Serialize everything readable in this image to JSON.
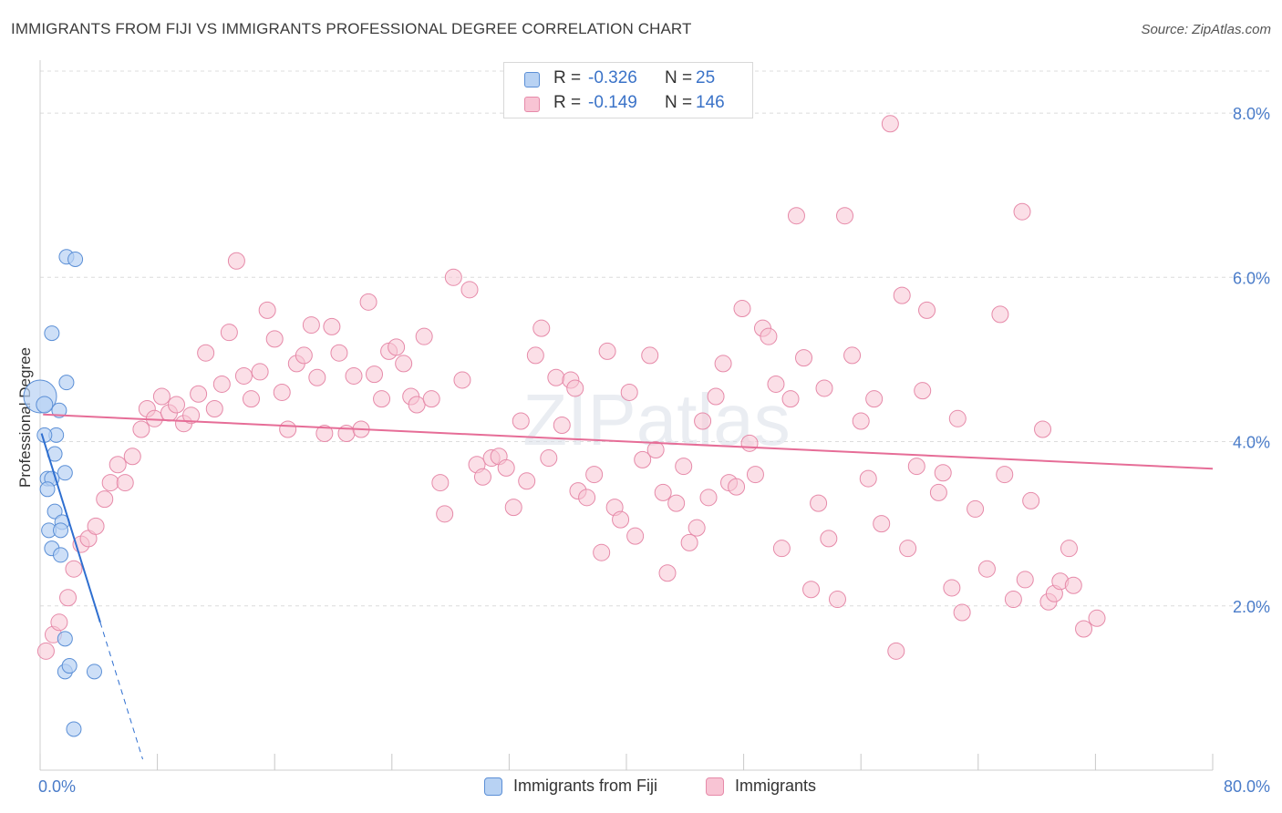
{
  "header": {
    "title": "IMMIGRANTS FROM FIJI VS IMMIGRANTS PROFESSIONAL DEGREE CORRELATION CHART",
    "source": "Source: ZipAtlas.com"
  },
  "watermark": "ZIPatlas",
  "legend_top": {
    "rows": [
      {
        "r_label": "R =",
        "r_value": "-0.326",
        "n_label": "N =",
        "n_value": "25"
      },
      {
        "r_label": "R =",
        "r_value": "-0.149",
        "n_label": "N =",
        "n_value": "146"
      }
    ]
  },
  "legend_bottom": {
    "items": [
      "Immigrants from Fiji",
      "Immigrants"
    ]
  },
  "colors": {
    "fiji_fill": "#b8d2f3",
    "fiji_stroke": "#5b8fd6",
    "fiji_line": "#2f6fd0",
    "imm_fill": "#f8c4d4",
    "imm_stroke": "#e68aa9",
    "imm_line": "#e66d97",
    "axis_text": "#4a7cc9",
    "grid": "#dcdcdc"
  },
  "chart_data": {
    "type": "scatter",
    "title": "IMMIGRANTS FROM FIJI VS IMMIGRANTS PROFESSIONAL DEGREE CORRELATION CHART",
    "xlabel": "",
    "ylabel": "Professional Degree",
    "xlim": [
      0,
      80
    ],
    "ylim": [
      0,
      8.6
    ],
    "x_tick_labels": [
      "0.0%",
      "80.0%"
    ],
    "y_tick_labels": [
      "2.0%",
      "4.0%",
      "6.0%",
      "8.0%"
    ],
    "y_ticks": [
      2,
      4,
      6,
      8
    ],
    "grid": "horizontal dashed",
    "legend": "top-center",
    "series": [
      {
        "name": "Immigrants from Fiji",
        "r": -0.326,
        "n": 25,
        "trend": {
          "x0": 0.1,
          "y0": 4.1,
          "x1": 4.1,
          "y1": 1.8,
          "dashed_to_x": 7.0
        },
        "points": [
          [
            0.0,
            4.55,
            18
          ],
          [
            0.3,
            4.45,
            9
          ],
          [
            0.8,
            5.32,
            8
          ],
          [
            1.8,
            6.25,
            8
          ],
          [
            2.4,
            6.22,
            8
          ],
          [
            1.8,
            4.72,
            8
          ],
          [
            1.3,
            4.38,
            8
          ],
          [
            1.1,
            4.08,
            8
          ],
          [
            0.3,
            4.08,
            8
          ],
          [
            1.0,
            3.85,
            8
          ],
          [
            1.7,
            3.62,
            8
          ],
          [
            0.5,
            3.55,
            8
          ],
          [
            0.8,
            3.55,
            8
          ],
          [
            0.5,
            3.42,
            8
          ],
          [
            1.0,
            3.15,
            8
          ],
          [
            1.5,
            3.02,
            8
          ],
          [
            0.6,
            2.92,
            8
          ],
          [
            1.4,
            2.92,
            8
          ],
          [
            0.8,
            2.7,
            8
          ],
          [
            1.4,
            2.62,
            8
          ],
          [
            1.7,
            1.6,
            8
          ],
          [
            1.7,
            1.2,
            8
          ],
          [
            2.0,
            1.27,
            8
          ],
          [
            3.7,
            1.2,
            8
          ],
          [
            2.3,
            0.5,
            8
          ]
        ]
      },
      {
        "name": "Immigrants",
        "r": -0.149,
        "n": 146,
        "trend": {
          "x0": 0.2,
          "y0": 4.33,
          "x1": 80.0,
          "y1": 3.67
        },
        "points": [
          [
            0.4,
            1.45,
            9
          ],
          [
            0.9,
            1.65,
            9
          ],
          [
            1.3,
            1.8,
            9
          ],
          [
            1.9,
            2.1,
            9
          ],
          [
            2.3,
            2.45,
            9
          ],
          [
            2.8,
            2.75,
            9
          ],
          [
            3.3,
            2.82,
            9
          ],
          [
            3.8,
            2.97,
            9
          ],
          [
            4.4,
            3.3,
            9
          ],
          [
            4.8,
            3.5,
            9
          ],
          [
            5.3,
            3.72,
            9
          ],
          [
            5.8,
            3.5,
            9
          ],
          [
            6.3,
            3.82,
            9
          ],
          [
            6.9,
            4.15,
            9
          ],
          [
            7.3,
            4.4,
            9
          ],
          [
            7.8,
            4.28,
            9
          ],
          [
            8.3,
            4.55,
            9
          ],
          [
            8.8,
            4.35,
            9
          ],
          [
            9.3,
            4.45,
            9
          ],
          [
            9.8,
            4.22,
            9
          ],
          [
            10.3,
            4.32,
            9
          ],
          [
            10.8,
            4.58,
            9
          ],
          [
            11.3,
            5.08,
            9
          ],
          [
            11.9,
            4.4,
            9
          ],
          [
            12.4,
            4.7,
            9
          ],
          [
            12.9,
            5.33,
            9
          ],
          [
            13.4,
            6.2,
            9
          ],
          [
            13.9,
            4.8,
            9
          ],
          [
            14.4,
            4.52,
            9
          ],
          [
            15.0,
            4.85,
            9
          ],
          [
            15.5,
            5.6,
            9
          ],
          [
            16.0,
            5.25,
            9
          ],
          [
            16.5,
            4.6,
            9
          ],
          [
            16.9,
            4.15,
            9
          ],
          [
            17.5,
            4.95,
            9
          ],
          [
            18.0,
            5.05,
            9
          ],
          [
            18.5,
            5.42,
            9
          ],
          [
            18.9,
            4.78,
            9
          ],
          [
            19.4,
            4.1,
            9
          ],
          [
            19.9,
            5.4,
            9
          ],
          [
            20.4,
            5.08,
            9
          ],
          [
            20.9,
            4.1,
            9
          ],
          [
            21.4,
            4.8,
            9
          ],
          [
            21.9,
            4.15,
            9
          ],
          [
            22.4,
            5.7,
            9
          ],
          [
            22.8,
            4.82,
            9
          ],
          [
            23.3,
            4.52,
            9
          ],
          [
            23.8,
            5.1,
            9
          ],
          [
            24.3,
            5.15,
            9
          ],
          [
            24.8,
            4.95,
            9
          ],
          [
            25.3,
            4.55,
            9
          ],
          [
            25.7,
            4.45,
            9
          ],
          [
            26.2,
            5.28,
            9
          ],
          [
            26.7,
            4.52,
            9
          ],
          [
            27.3,
            3.5,
            9
          ],
          [
            27.6,
            3.12,
            9
          ],
          [
            28.2,
            6.0,
            9
          ],
          [
            28.8,
            4.75,
            9
          ],
          [
            29.3,
            5.85,
            9
          ],
          [
            29.8,
            3.72,
            9
          ],
          [
            30.2,
            3.57,
            9
          ],
          [
            30.8,
            3.8,
            9
          ],
          [
            31.3,
            3.82,
            9
          ],
          [
            31.8,
            3.68,
            9
          ],
          [
            32.3,
            3.2,
            9
          ],
          [
            32.8,
            4.25,
            9
          ],
          [
            33.2,
            3.52,
            9
          ],
          [
            33.8,
            5.05,
            9
          ],
          [
            34.2,
            5.38,
            9
          ],
          [
            34.7,
            3.8,
            9
          ],
          [
            35.2,
            4.78,
            9
          ],
          [
            35.6,
            4.2,
            9
          ],
          [
            36.2,
            4.75,
            9
          ],
          [
            36.5,
            4.65,
            9
          ],
          [
            36.7,
            3.4,
            9
          ],
          [
            37.3,
            3.32,
            9
          ],
          [
            37.8,
            3.6,
            9
          ],
          [
            38.3,
            2.65,
            9
          ],
          [
            38.7,
            5.1,
            9
          ],
          [
            39.2,
            3.2,
            9
          ],
          [
            39.6,
            3.05,
            9
          ],
          [
            40.2,
            4.6,
            9
          ],
          [
            40.6,
            2.85,
            9
          ],
          [
            41.1,
            3.78,
            9
          ],
          [
            41.6,
            5.05,
            9
          ],
          [
            42.0,
            3.9,
            9
          ],
          [
            42.5,
            3.38,
            9
          ],
          [
            42.8,
            2.4,
            9
          ],
          [
            43.4,
            3.25,
            9
          ],
          [
            43.9,
            3.7,
            9
          ],
          [
            44.3,
            2.77,
            9
          ],
          [
            44.8,
            2.95,
            9
          ],
          [
            45.2,
            4.25,
            9
          ],
          [
            45.6,
            3.32,
            9
          ],
          [
            46.1,
            4.55,
            9
          ],
          [
            46.6,
            4.95,
            9
          ],
          [
            47.0,
            3.5,
            9
          ],
          [
            47.5,
            3.45,
            9
          ],
          [
            47.9,
            5.62,
            9
          ],
          [
            48.4,
            3.98,
            9
          ],
          [
            48.8,
            3.6,
            9
          ],
          [
            49.3,
            5.38,
            9
          ],
          [
            49.7,
            5.28,
            9
          ],
          [
            50.2,
            4.7,
            9
          ],
          [
            50.6,
            2.7,
            9
          ],
          [
            51.2,
            4.52,
            9
          ],
          [
            51.6,
            6.75,
            9
          ],
          [
            52.1,
            5.02,
            9
          ],
          [
            52.6,
            2.2,
            9
          ],
          [
            53.1,
            3.25,
            9
          ],
          [
            53.5,
            4.65,
            9
          ],
          [
            53.8,
            2.82,
            9
          ],
          [
            54.4,
            2.08,
            9
          ],
          [
            54.9,
            6.75,
            9
          ],
          [
            55.4,
            5.05,
            9
          ],
          [
            56.0,
            4.25,
            9
          ],
          [
            56.5,
            3.55,
            9
          ],
          [
            56.9,
            4.52,
            9
          ],
          [
            57.4,
            3.0,
            9
          ],
          [
            58.0,
            7.87,
            9
          ],
          [
            58.4,
            1.45,
            9
          ],
          [
            58.8,
            5.78,
            9
          ],
          [
            59.2,
            2.7,
            9
          ],
          [
            59.8,
            3.7,
            9
          ],
          [
            60.2,
            4.62,
            9
          ],
          [
            60.5,
            5.6,
            9
          ],
          [
            61.3,
            3.38,
            9
          ],
          [
            61.6,
            3.62,
            9
          ],
          [
            62.2,
            2.22,
            9
          ],
          [
            62.6,
            4.28,
            9
          ],
          [
            62.9,
            1.92,
            9
          ],
          [
            63.8,
            3.18,
            9
          ],
          [
            64.6,
            2.45,
            9
          ],
          [
            65.5,
            5.55,
            9
          ],
          [
            65.8,
            3.6,
            9
          ],
          [
            66.4,
            2.08,
            9
          ],
          [
            67.0,
            6.8,
            9
          ],
          [
            67.2,
            2.32,
            9
          ],
          [
            67.6,
            3.28,
            9
          ],
          [
            68.4,
            4.15,
            9
          ],
          [
            68.8,
            2.05,
            9
          ],
          [
            69.2,
            2.15,
            9
          ],
          [
            69.6,
            2.3,
            9
          ],
          [
            70.2,
            2.7,
            9
          ],
          [
            70.5,
            2.25,
            9
          ],
          [
            71.2,
            1.72,
            9
          ],
          [
            72.1,
            1.85,
            9
          ]
        ]
      }
    ]
  }
}
